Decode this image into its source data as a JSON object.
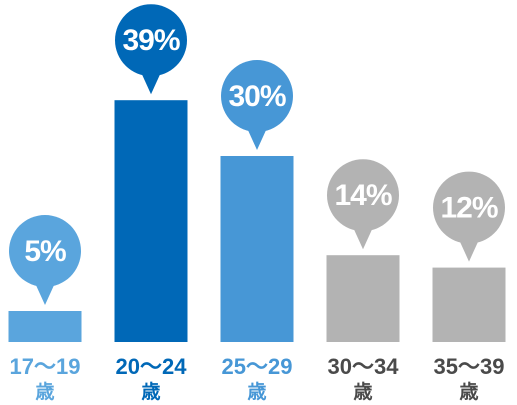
{
  "chart_data": {
    "type": "bar",
    "categories": [
      "17～19",
      "20～24",
      "25～29",
      "30～34",
      "35～39"
    ],
    "category_suffix": "歳",
    "values": [
      5,
      39,
      30,
      14,
      12
    ],
    "value_labels": [
      "5%",
      "39%",
      "30%",
      "14%",
      "12%"
    ],
    "colors": [
      "#5aa5dd",
      "#0068b7",
      "#4797d6",
      "#b3b3b3",
      "#b3b3b3"
    ],
    "label_colors": [
      "#5aa5dd",
      "#0068b7",
      "#4797d6",
      "#4a4a4a",
      "#4a4a4a"
    ]
  }
}
